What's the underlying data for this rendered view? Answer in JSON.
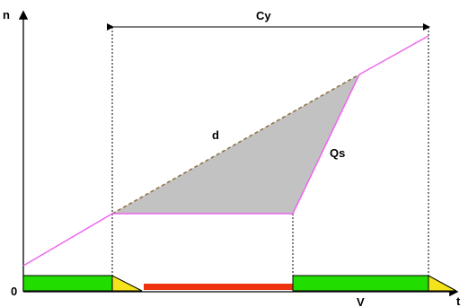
{
  "labels": {
    "y_axis": "n",
    "x_axis": "t",
    "origin": "0",
    "cycle": "Cy",
    "diagonal": "d",
    "discharge": "Qs",
    "phase": "V"
  },
  "colors": {
    "arrival_line": "#ee66ee",
    "queue_fill": "#c2c2c2",
    "dashed_line": "#8a6d3b",
    "green": "#22dd00",
    "amber": "#f4e31c",
    "red": "#ee3311",
    "axis": "#000000"
  }
}
